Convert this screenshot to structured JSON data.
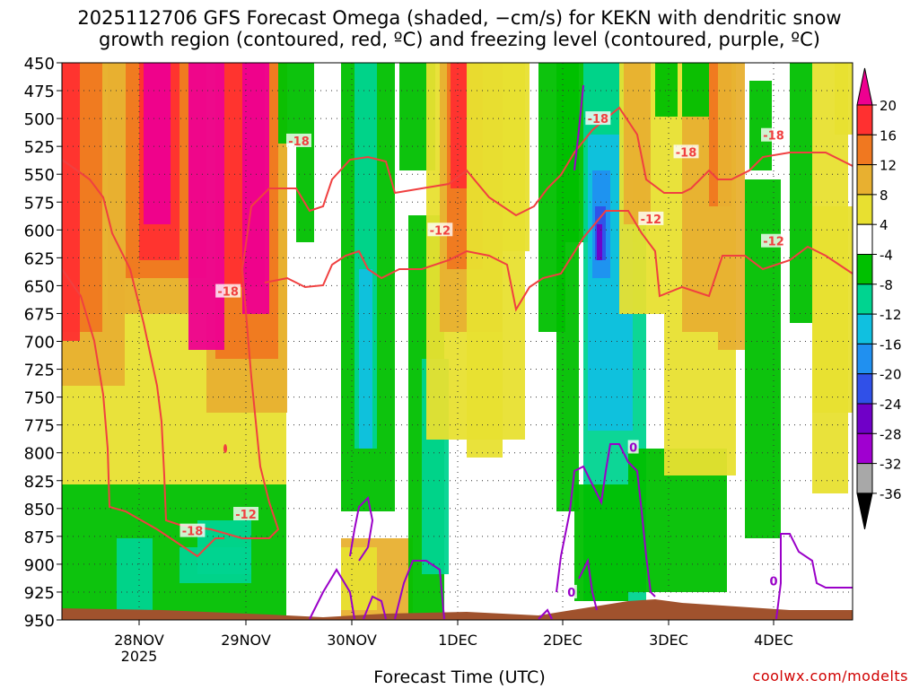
{
  "chart_data": {
    "type": "heatmap",
    "title": "2025112706 GFS Forecast Omega (shaded, −cm/s) for KEKN with dendritic snow",
    "subtitle": "growth region (contoured, red, ºC) and freezing level (contoured, purple, ºC)",
    "xlabel": "Forecast Time (UTC)",
    "ylabel": "",
    "y_axis": {
      "ticks": [
        450,
        475,
        500,
        525,
        550,
        575,
        600,
        625,
        650,
        675,
        700,
        725,
        750,
        775,
        800,
        825,
        850,
        875,
        900,
        925,
        950
      ],
      "range": [
        950,
        450
      ]
    },
    "x_axis": {
      "ticks": [
        "28NOV",
        "29NOV",
        "30NOV",
        "1DEC",
        "2DEC",
        "3DEC",
        "4DEC"
      ],
      "sublabel": "2025"
    },
    "colorbar": {
      "labels": [
        "20",
        "16",
        "12",
        "8",
        "4",
        "-4",
        "-8",
        "-12",
        "-16",
        "-20",
        "-24",
        "-28",
        "-32",
        "-36"
      ],
      "colors": [
        "#ee0090",
        "#ff3030",
        "#f07820",
        "#e8b030",
        "#e8e030",
        "#ffffff",
        "#00c000",
        "#00d490",
        "#10c0e0",
        "#2090f0",
        "#3050e8",
        "#7000c8",
        "#a000d0",
        "#a8a8a8",
        "#000000"
      ]
    },
    "contour_labels": [
      {
        "series": "dgz_red",
        "value": "-18",
        "time": "28NOV 12Z",
        "level": 870
      },
      {
        "series": "dgz_red",
        "value": "-12",
        "time": "29NOV 00Z",
        "level": 855
      },
      {
        "series": "dgz_red",
        "value": "-18",
        "time": "28NOV 20Z",
        "level": 655
      },
      {
        "series": "dgz_red",
        "value": "-18",
        "time": "29NOV 12Z",
        "level": 520
      },
      {
        "series": "dgz_red",
        "value": "-12",
        "time": "30NOV 20Z",
        "level": 600
      },
      {
        "series": "dgz_red",
        "value": "-18",
        "time": "2DEC 08Z",
        "level": 500
      },
      {
        "series": "dgz_red",
        "value": "-12",
        "time": "2DEC 20Z",
        "level": 590
      },
      {
        "series": "dgz_red",
        "value": "-18",
        "time": "3DEC 04Z",
        "level": 530
      },
      {
        "series": "dgz_red",
        "value": "-18",
        "time": "4DEC 00Z",
        "level": 515
      },
      {
        "series": "dgz_red",
        "value": "-12",
        "time": "4DEC 00Z",
        "level": 610
      },
      {
        "series": "freezing_purple",
        "value": "0",
        "time": "2DEC 16Z",
        "level": 795
      },
      {
        "series": "freezing_purple",
        "value": "0",
        "time": "2DEC 02Z",
        "level": 925
      },
      {
        "series": "freezing_purple",
        "value": "0",
        "time": "4DEC 00Z",
        "level": 915
      }
    ]
  },
  "footer": {
    "credit": "coolwx.com/modelts"
  }
}
